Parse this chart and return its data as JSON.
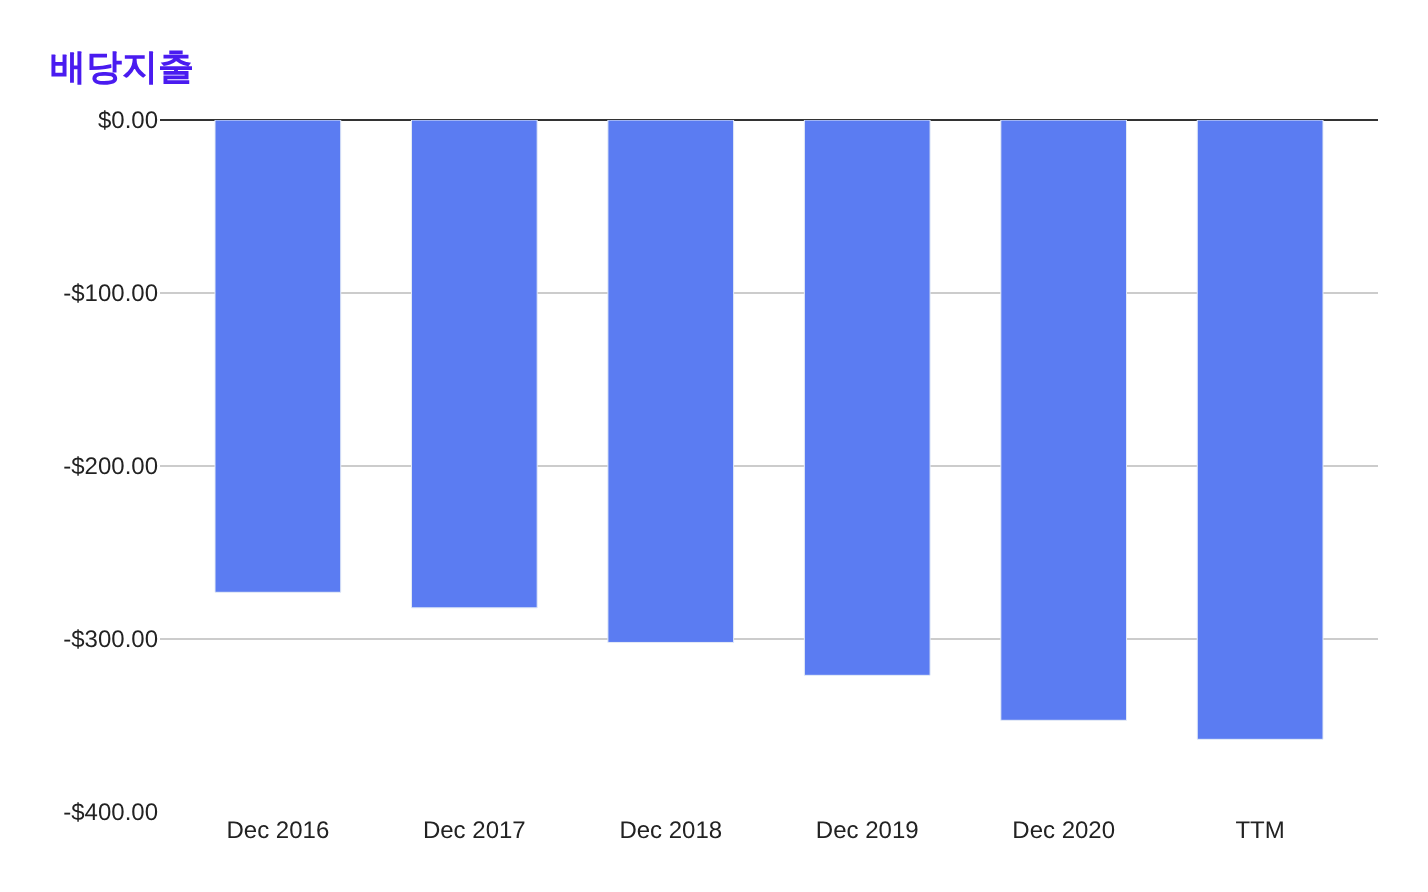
{
  "chart_data": {
    "type": "bar",
    "title": "배당지출",
    "categories": [
      "Dec 2016",
      "Dec 2017",
      "Dec 2018",
      "Dec 2019",
      "Dec 2020",
      "TTM"
    ],
    "values": [
      -273,
      -282,
      -302,
      -321,
      -347,
      -358
    ],
    "color": "#5b7cf2",
    "ylim": [
      -400,
      0
    ],
    "yticks": [
      {
        "value": 0,
        "label": "$0.00"
      },
      {
        "value": -100,
        "label": "-$100.00"
      },
      {
        "value": -200,
        "label": "-$200.00"
      },
      {
        "value": -300,
        "label": "-$300.00"
      },
      {
        "value": -400,
        "label": "-$400.00"
      }
    ],
    "grid": "y"
  }
}
